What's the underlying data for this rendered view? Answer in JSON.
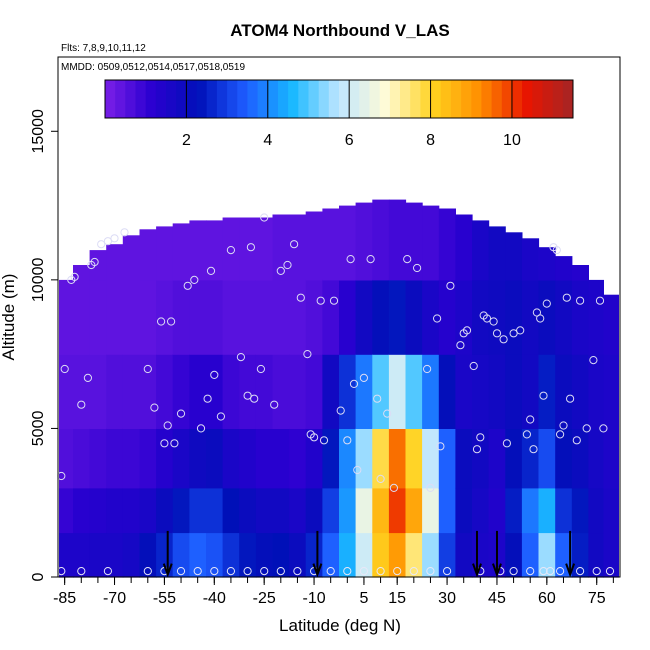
{
  "chart_data": {
    "type": "heatmap",
    "title": "ATOM4 Northbound V_LAS",
    "subtitle_flights": "Flts: 7,8,9,10,11,12",
    "subtitle_dates": "MMDD: 0509,0512,0514,0517,0518,0519",
    "xlabel": "Latitude (deg N)",
    "ylabel": "Altitude (m)",
    "x_ticks": [
      "-85",
      "-70",
      "-55",
      "-40",
      "-25",
      "-10",
      "5",
      "15",
      "30",
      "45",
      "60",
      "75"
    ],
    "x_tick_values": [
      -85,
      -70,
      -55,
      -40,
      -25,
      -10,
      5,
      15,
      30,
      45,
      60,
      75
    ],
    "y_ticks": [
      "0",
      "5000",
      "10000",
      "15000"
    ],
    "y_tick_values": [
      0,
      5000,
      10000,
      15000
    ],
    "xlim": [
      -87,
      82
    ],
    "ylim": [
      0,
      17500
    ],
    "colorbar": {
      "ticks": [
        "2",
        "4",
        "6",
        "8",
        "10"
      ],
      "tick_values": [
        2,
        4,
        6,
        8,
        10
      ],
      "range": [
        0,
        11.5
      ],
      "colors": [
        "#7b1fe8",
        "#2a00d0",
        "#0010b8",
        "#1e5cff",
        "#18b8ff",
        "#bfe6ff",
        "#fffbd6",
        "#ffd21f",
        "#ff8f00",
        "#e81500",
        "#a52525"
      ]
    },
    "columns": [
      {
        "lat": -85,
        "top": 10000,
        "vals": [
          1.5,
          1.0,
          0.6,
          0.5,
          0.4,
          0.4
        ]
      },
      {
        "lat": -80,
        "top": 10500,
        "vals": [
          1.5,
          1.2,
          0.7,
          0.5,
          0.4,
          0.4
        ]
      },
      {
        "lat": -75,
        "top": 11000,
        "vals": [
          1.6,
          1.3,
          0.8,
          0.5,
          0.4,
          0.4
        ]
      },
      {
        "lat": -70,
        "top": 11200,
        "vals": [
          1.6,
          1.4,
          0.9,
          0.6,
          0.4,
          0.4
        ]
      },
      {
        "lat": -65,
        "top": 11500,
        "vals": [
          1.7,
          1.4,
          0.9,
          0.6,
          0.4,
          0.4
        ]
      },
      {
        "lat": -60,
        "top": 11700,
        "vals": [
          2.2,
          1.6,
          1.0,
          0.6,
          0.4,
          0.4
        ]
      },
      {
        "lat": -55,
        "top": 11800,
        "vals": [
          2.6,
          2.0,
          1.3,
          0.8,
          0.5,
          0.4
        ]
      },
      {
        "lat": -50,
        "top": 11900,
        "vals": [
          3.2,
          2.4,
          1.6,
          1.0,
          0.6,
          0.4
        ]
      },
      {
        "lat": -45,
        "top": 12000,
        "vals": [
          3.5,
          2.8,
          1.9,
          1.2,
          0.6,
          0.4
        ]
      },
      {
        "lat": -40,
        "top": 12000,
        "vals": [
          3.3,
          2.8,
          2.0,
          1.2,
          0.6,
          0.4
        ]
      },
      {
        "lat": -35,
        "top": 12100,
        "vals": [
          2.8,
          2.3,
          1.6,
          0.9,
          0.5,
          0.4
        ]
      },
      {
        "lat": -30,
        "top": 12100,
        "vals": [
          2.4,
          2.0,
          1.4,
          0.8,
          0.5,
          0.4
        ]
      },
      {
        "lat": -25,
        "top": 12100,
        "vals": [
          2.2,
          1.8,
          1.2,
          0.8,
          0.5,
          0.4
        ]
      },
      {
        "lat": -20,
        "top": 12200,
        "vals": [
          2.3,
          1.8,
          1.2,
          0.7,
          0.5,
          0.5
        ]
      },
      {
        "lat": -15,
        "top": 12200,
        "vals": [
          2.0,
          1.6,
          1.1,
          0.7,
          0.5,
          0.5
        ]
      },
      {
        "lat": -10,
        "top": 12300,
        "vals": [
          2.6,
          2.0,
          1.4,
          0.8,
          0.6,
          0.5
        ]
      },
      {
        "lat": -5,
        "top": 12400,
        "vals": [
          3.5,
          3.0,
          2.4,
          1.8,
          0.8,
          0.5
        ]
      },
      {
        "lat": 0,
        "top": 12500,
        "vals": [
          4.5,
          4.2,
          4.0,
          2.8,
          1.2,
          0.5
        ]
      },
      {
        "lat": 5,
        "top": 12600,
        "vals": [
          6.0,
          6.5,
          5.5,
          3.8,
          1.8,
          0.6
        ]
      },
      {
        "lat": 10,
        "top": 12700,
        "vals": [
          8.2,
          8.5,
          7.8,
          5.0,
          2.2,
          0.7
        ]
      },
      {
        "lat": 15,
        "top": 12700,
        "vals": [
          9.0,
          10.0,
          9.5,
          6.0,
          2.4,
          0.8
        ]
      },
      {
        "lat": 20,
        "top": 12600,
        "vals": [
          7.5,
          8.8,
          8.0,
          5.0,
          2.0,
          0.8
        ]
      },
      {
        "lat": 25,
        "top": 12500,
        "vals": [
          5.5,
          6.5,
          5.8,
          3.8,
          1.6,
          0.8
        ]
      },
      {
        "lat": 30,
        "top": 12400,
        "vals": [
          3.0,
          3.5,
          3.5,
          2.2,
          1.3,
          1.0
        ]
      },
      {
        "lat": 35,
        "top": 12200,
        "vals": [
          1.8,
          2.0,
          2.0,
          1.6,
          1.5,
          1.2
        ]
      },
      {
        "lat": 40,
        "top": 12000,
        "vals": [
          1.6,
          1.7,
          1.8,
          1.7,
          1.8,
          1.6
        ]
      },
      {
        "lat": 45,
        "top": 11800,
        "vals": [
          1.5,
          1.4,
          1.5,
          1.8,
          1.9,
          1.8
        ]
      },
      {
        "lat": 50,
        "top": 11600,
        "vals": [
          2.2,
          2.5,
          2.2,
          2.0,
          2.0,
          1.8
        ]
      },
      {
        "lat": 55,
        "top": 11400,
        "vals": [
          3.5,
          3.8,
          2.6,
          1.8,
          1.8,
          1.6
        ]
      },
      {
        "lat": 60,
        "top": 11100,
        "vals": [
          5.5,
          4.5,
          3.2,
          2.5,
          2.0,
          1.5
        ]
      },
      {
        "lat": 65,
        "top": 10800,
        "vals": [
          3.5,
          2.8,
          2.2,
          2.0,
          1.8,
          1.4
        ]
      },
      {
        "lat": 70,
        "top": 10500,
        "vals": [
          2.5,
          2.4,
          2.0,
          1.8,
          1.6,
          1.3
        ]
      },
      {
        "lat": 75,
        "top": 10000,
        "vals": [
          1.8,
          1.8,
          1.7,
          1.6,
          1.5,
          1.2
        ]
      },
      {
        "lat": 79,
        "top": 9500,
        "vals": [
          1.6,
          1.6,
          1.5,
          1.5,
          1.4,
          1.2
        ]
      }
    ],
    "layer_altitudes": [
      0,
      1500,
      3000,
      5000,
      7500,
      10000,
      12800
    ],
    "arrows_lat": [
      -54,
      -9,
      39,
      45,
      67
    ],
    "profile_points": [
      [
        -86,
        3400
      ],
      [
        -85,
        7000
      ],
      [
        -83,
        10000
      ],
      [
        -82,
        10100
      ],
      [
        -80,
        5800
      ],
      [
        -78,
        6700
      ],
      [
        -77,
        10500
      ],
      [
        -76,
        10600
      ],
      [
        -74,
        11200
      ],
      [
        -72,
        11300
      ],
      [
        -70,
        11400
      ],
      [
        -67,
        11600
      ],
      [
        -60,
        7000
      ],
      [
        -58,
        5700
      ],
      [
        -56,
        8600
      ],
      [
        -55,
        4500
      ],
      [
        -54,
        5100
      ],
      [
        -53,
        8600
      ],
      [
        -52,
        4500
      ],
      [
        -50,
        5500
      ],
      [
        -48,
        9800
      ],
      [
        -46,
        10000
      ],
      [
        -44,
        5000
      ],
      [
        -42,
        6000
      ],
      [
        -41,
        10300
      ],
      [
        -40,
        6800
      ],
      [
        -38,
        5400
      ],
      [
        -35,
        11000
      ],
      [
        -32,
        7400
      ],
      [
        -30,
        6100
      ],
      [
        -29,
        11100
      ],
      [
        -28,
        6000
      ],
      [
        -26,
        7000
      ],
      [
        -25,
        12100
      ],
      [
        -22,
        5800
      ],
      [
        -20,
        10300
      ],
      [
        -18,
        10500
      ],
      [
        -16,
        11200
      ],
      [
        -14,
        9400
      ],
      [
        -12,
        7500
      ],
      [
        -11,
        4800
      ],
      [
        -10,
        4700
      ],
      [
        -8,
        9300
      ],
      [
        -7,
        4600
      ],
      [
        -4,
        9300
      ],
      [
        -2,
        5600
      ],
      [
        0,
        4600
      ],
      [
        1,
        10700
      ],
      [
        2,
        6500
      ],
      [
        3,
        3600
      ],
      [
        5,
        6700
      ],
      [
        7,
        10700
      ],
      [
        9,
        6000
      ],
      [
        10,
        3300
      ],
      [
        12,
        5500
      ],
      [
        14,
        3000
      ],
      [
        18,
        10700
      ],
      [
        21,
        10400
      ],
      [
        24,
        7000
      ],
      [
        25,
        3000
      ],
      [
        27,
        8700
      ],
      [
        28,
        4400
      ],
      [
        31,
        9800
      ],
      [
        34,
        7800
      ],
      [
        35,
        8200
      ],
      [
        36,
        8300
      ],
      [
        38,
        7100
      ],
      [
        39,
        4300
      ],
      [
        40,
        4700
      ],
      [
        41,
        8800
      ],
      [
        42,
        8700
      ],
      [
        44,
        8600
      ],
      [
        45,
        8200
      ],
      [
        47,
        8000
      ],
      [
        48,
        4500
      ],
      [
        50,
        8200
      ],
      [
        52,
        8300
      ],
      [
        54,
        4800
      ],
      [
        55,
        5300
      ],
      [
        56,
        4300
      ],
      [
        57,
        8900
      ],
      [
        58,
        8700
      ],
      [
        59,
        6100
      ],
      [
        60,
        9200
      ],
      [
        62,
        11100
      ],
      [
        63,
        11000
      ],
      [
        64,
        4800
      ],
      [
        65,
        5100
      ],
      [
        66,
        9400
      ],
      [
        67,
        6000
      ],
      [
        69,
        4600
      ],
      [
        70,
        9300
      ],
      [
        72,
        5000
      ],
      [
        74,
        7300
      ],
      [
        76,
        9300
      ],
      [
        77,
        5000
      ]
    ],
    "surface_points": [
      -86,
      -80,
      -72,
      -60,
      -55,
      -50,
      -45,
      -40,
      -35,
      -30,
      -25,
      -20,
      -15,
      -10,
      -5,
      0,
      5,
      10,
      15,
      20,
      25,
      30,
      40,
      46,
      50,
      55,
      59,
      61,
      64,
      70,
      75,
      79
    ]
  }
}
